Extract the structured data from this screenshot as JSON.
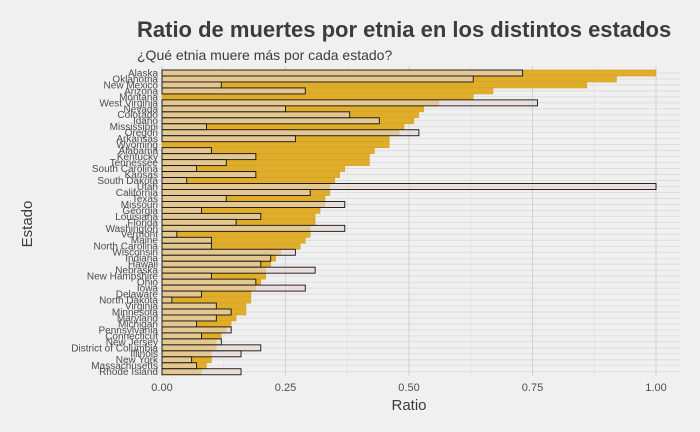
{
  "chart_data": {
    "type": "bar",
    "orientation": "horizontal",
    "title": "Ratio de muertes por etnia en los distintos estados",
    "subtitle": "¿Qué etnia muere más por cada estado?",
    "xlabel": "Ratio",
    "ylabel": "Estado",
    "xlim": [
      0,
      1
    ],
    "xticks": [
      "0.00",
      "0.25",
      "0.50",
      "0.75",
      "1.00"
    ],
    "xtick_values": [
      0,
      0.25,
      0.5,
      0.75,
      1
    ],
    "grid": true,
    "categories": [
      "Alaska",
      "Oklahoma",
      "New Mexico",
      "Arizona",
      "Montana",
      "West Virginia",
      "Nevada",
      "Colorado",
      "Idaho",
      "Mississippi",
      "Oregon",
      "Arkansas",
      "Wyoming",
      "Alabama",
      "Kentucky",
      "Tennessee",
      "South Carolina",
      "Kansas",
      "South Dakota",
      "Utah",
      "California",
      "Texas",
      "Missouri",
      "Georgia",
      "Louisiana",
      "Florida",
      "Washington",
      "Vermont",
      "Maine",
      "North Carolina",
      "Wisconsin",
      "Indiana",
      "Hawaii",
      "Nebraska",
      "New Hampshire",
      "Ohio",
      "Iowa",
      "Delaware",
      "North Dakota",
      "Virginia",
      "Minnesota",
      "Maryland",
      "Michigan",
      "Pennsylvania",
      "Connecticut",
      "New Jersey",
      "District of Columbia",
      "Illinois",
      "New York",
      "Massachusetts",
      "Rhode Island"
    ],
    "series": [
      {
        "name": "",
        "color": "#e0ad2a",
        "values": [
          1.0,
          0.92,
          0.86,
          0.67,
          0.63,
          0.56,
          0.53,
          0.52,
          0.51,
          0.49,
          0.48,
          0.46,
          0.46,
          0.43,
          0.42,
          0.42,
          0.37,
          0.36,
          0.35,
          0.34,
          0.34,
          0.33,
          0.33,
          0.32,
          0.31,
          0.31,
          0.3,
          0.3,
          0.29,
          0.28,
          0.24,
          0.23,
          0.22,
          0.21,
          0.21,
          0.2,
          0.19,
          0.18,
          0.18,
          0.17,
          0.17,
          0.15,
          0.14,
          0.13,
          0.12,
          0.11,
          0.11,
          0.1,
          0.1,
          0.09,
          0.08
        ]
      },
      {
        "name": "",
        "color": "#e8d7d2",
        "values": [
          0.73,
          0.63,
          0.12,
          0.29,
          0.0,
          0.76,
          0.25,
          0.38,
          0.44,
          0.09,
          0.52,
          0.27,
          0.0,
          0.1,
          0.19,
          0.13,
          0.07,
          0.19,
          0.05,
          1.0,
          0.3,
          0.13,
          0.37,
          0.08,
          0.2,
          0.15,
          0.37,
          0.03,
          0.1,
          0.1,
          0.27,
          0.22,
          0.2,
          0.31,
          0.1,
          0.19,
          0.29,
          0.08,
          0.02,
          0.11,
          0.14,
          0.11,
          0.07,
          0.14,
          0.08,
          0.12,
          0.2,
          0.16,
          0.06,
          0.07,
          0.16
        ]
      }
    ]
  }
}
